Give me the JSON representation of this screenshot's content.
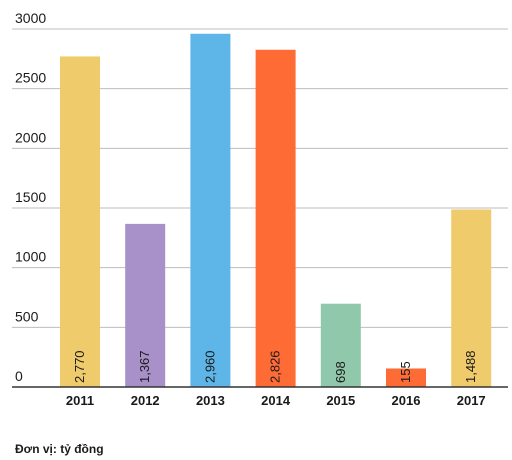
{
  "chart_data": {
    "type": "bar",
    "categories": [
      "2011",
      "2012",
      "2013",
      "2014",
      "2015",
      "2016",
      "2017"
    ],
    "values": [
      2770,
      1367,
      2960,
      2826,
      698,
      155,
      1488
    ],
    "value_labels": [
      "2,770",
      "1,367",
      "2,960",
      "2,826",
      "698",
      "155",
      "1,488"
    ],
    "colors": [
      "#EFCB6B",
      "#A890C8",
      "#5DB5E8",
      "#FF6B35",
      "#8FC8AA",
      "#FF6B35",
      "#EFCB6B"
    ],
    "yticks": [
      0,
      500,
      1000,
      1500,
      2000,
      2500,
      3000
    ],
    "ylim": [
      0,
      3000
    ],
    "grid": true,
    "xlabel": "",
    "ylabel": "",
    "title": ""
  },
  "footer": {
    "unit_note": "Đơn vị: tỷ đồng"
  }
}
